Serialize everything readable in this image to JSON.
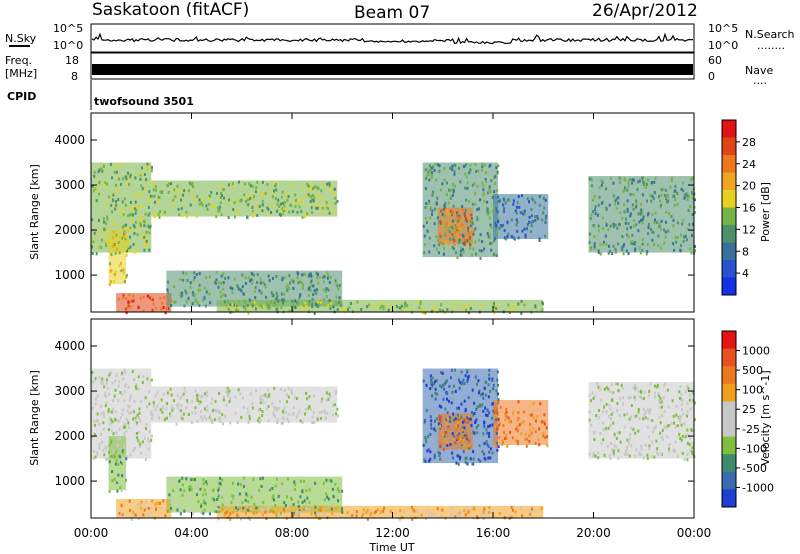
{
  "header": {
    "station": "Saskatoon (fitACF)",
    "beam": "Beam 07",
    "date": "26/Apr/2012"
  },
  "nsky_panel": {
    "left_label": "N.Sky",
    "right_label": "N.Search",
    "right_label_dots": "........",
    "left_ticks": [
      "10^5",
      "10^0"
    ],
    "right_ticks": [
      "10^5",
      "10^0"
    ]
  },
  "freq_panel": {
    "left_label_line1": "Freq.",
    "left_label_line2": "[MHz]",
    "left_ticks": [
      "18",
      "8"
    ],
    "right_label": "Nave",
    "right_label_dots": "....",
    "right_ticks": [
      "60",
      "0"
    ]
  },
  "cpid_panel": {
    "label": "CPID",
    "value": "twofsound 3501"
  },
  "colors": {
    "power": [
      "#1430e6",
      "#2a52cc",
      "#37729a",
      "#4f8f6e",
      "#74b444",
      "#e6d21e",
      "#f0a522",
      "#f0781c",
      "#e04416",
      "#e01414"
    ],
    "velocity": [
      "#1e3fd0",
      "#3a6ab0",
      "#3e8a6c",
      "#7ec03c",
      "#c8c8c8",
      "#c8c8c8",
      "#f0a01e",
      "#ec7820",
      "#e85020",
      "#e41414"
    ]
  },
  "chart_data": [
    {
      "type": "heatmap",
      "quantity": "Power",
      "xlabel": "",
      "ylabel": "Slant Range [km]",
      "x_range_hours": [
        0,
        24
      ],
      "ylim": [
        180,
        4600
      ],
      "y_ticks": [
        "4000",
        "3000",
        "2000",
        "1000"
      ],
      "colorbar_label": "Power [dB]",
      "colorbar_ticks": [
        "28",
        "24",
        "20",
        "16",
        "12",
        "8",
        "4"
      ],
      "colorbar_range": [
        0,
        30
      ],
      "regions": [
        {
          "t0": 0.0,
          "t1": 2.4,
          "r_lo": 1500,
          "r_hi": 3500,
          "level": 12
        },
        {
          "t0": 2.4,
          "t1": 9.8,
          "r_lo": 2300,
          "r_hi": 3100,
          "level": 11
        },
        {
          "t0": 0.7,
          "t1": 1.4,
          "r_lo": 800,
          "r_hi": 2000,
          "level": 16
        },
        {
          "t0": 1.0,
          "t1": 3.2,
          "r_lo": 180,
          "r_hi": 600,
          "level": 24
        },
        {
          "t0": 3.0,
          "t1": 10.0,
          "r_lo": 300,
          "r_hi": 1100,
          "level": 10
        },
        {
          "t0": 5.0,
          "t1": 18.0,
          "r_lo": 180,
          "r_hi": 450,
          "level": 12
        },
        {
          "t0": 13.2,
          "t1": 16.2,
          "r_lo": 1400,
          "r_hi": 3500,
          "level": 9
        },
        {
          "t0": 13.8,
          "t1": 15.2,
          "r_lo": 1700,
          "r_hi": 2500,
          "level": 20
        },
        {
          "t0": 16.0,
          "t1": 18.2,
          "r_lo": 1800,
          "r_hi": 2800,
          "level": 6
        },
        {
          "t0": 19.8,
          "t1": 24.0,
          "r_lo": 1500,
          "r_hi": 3200,
          "level": 8
        }
      ]
    },
    {
      "type": "heatmap",
      "quantity": "Velocity",
      "xlabel": "Time UT",
      "ylabel": "Slant Range [km]",
      "x_range_hours": [
        0,
        24
      ],
      "ylim": [
        180,
        4600
      ],
      "x_ticks": [
        "00:00",
        "04:00",
        "08:00",
        "12:00",
        "16:00",
        "20:00",
        "00:00"
      ],
      "y_ticks": [
        "4000",
        "3000",
        "2000",
        "1000"
      ],
      "colorbar_label": "Velocity [m s^-1]",
      "colorbar_ticks": [
        "1000",
        "500",
        "100",
        "25",
        "-25",
        "-100",
        "-500",
        "-1000"
      ],
      "regions": [
        {
          "t0": 0.0,
          "t1": 2.4,
          "r_lo": 1500,
          "r_hi": 3500,
          "level": 4
        },
        {
          "t0": 2.4,
          "t1": 9.8,
          "r_lo": 2300,
          "r_hi": 3100,
          "level": 4
        },
        {
          "t0": 0.7,
          "t1": 1.4,
          "r_lo": 800,
          "r_hi": 2000,
          "level": 3
        },
        {
          "t0": 1.0,
          "t1": 3.2,
          "r_lo": 180,
          "r_hi": 600,
          "level": 6
        },
        {
          "t0": 3.0,
          "t1": 10.0,
          "r_lo": 300,
          "r_hi": 1100,
          "level": 3
        },
        {
          "t0": 5.0,
          "t1": 18.0,
          "r_lo": 180,
          "r_hi": 450,
          "level": 6
        },
        {
          "t0": 13.2,
          "t1": 16.2,
          "r_lo": 1400,
          "r_hi": 3500,
          "level": 1
        },
        {
          "t0": 13.8,
          "t1": 15.2,
          "r_lo": 1700,
          "r_hi": 2500,
          "level": 7
        },
        {
          "t0": 16.0,
          "t1": 18.2,
          "r_lo": 1800,
          "r_hi": 2800,
          "level": 7
        },
        {
          "t0": 19.8,
          "t1": 24.0,
          "r_lo": 1500,
          "r_hi": 3200,
          "level": 4
        }
      ]
    }
  ]
}
